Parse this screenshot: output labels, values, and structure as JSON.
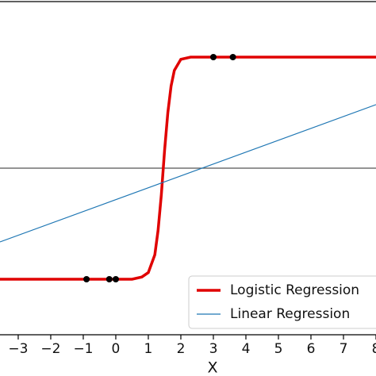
{
  "chart_data": {
    "type": "line",
    "xlabel": "X",
    "xlim": [
      -3.56,
      8.0
    ],
    "ylim": [
      -0.25,
      1.25
    ],
    "xticks": [
      {
        "value": -3,
        "label": "−3"
      },
      {
        "value": -2,
        "label": "−2"
      },
      {
        "value": -1,
        "label": "−1"
      },
      0,
      1,
      2,
      3,
      4,
      5,
      6,
      7,
      8
    ],
    "hline": 0.5,
    "hline_color": "#555555",
    "legend": "lower right",
    "series": [
      {
        "name": "Logistic Regression",
        "type": "line",
        "color": "#e00000",
        "x": [
          -3.56,
          0.5,
          0.8,
          1.0,
          1.2,
          1.3,
          1.4,
          1.46,
          1.5,
          1.6,
          1.7,
          1.8,
          2.0,
          2.3,
          8.0
        ],
        "values": [
          0,
          0,
          0.01,
          0.03,
          0.11,
          0.22,
          0.38,
          0.5,
          0.58,
          0.75,
          0.87,
          0.94,
          0.99,
          1.0,
          1.0
        ]
      },
      {
        "name": "Linear Regression",
        "type": "line",
        "color": "#1f77b4",
        "x": [
          -3.56,
          8.0
        ],
        "values": [
          0.168,
          0.786
        ]
      },
      {
        "type": "scatter",
        "color": "#000000",
        "x": [
          -0.9,
          -0.2,
          0,
          3,
          3.6
        ],
        "values": [
          0,
          0,
          0,
          1,
          1
        ]
      }
    ]
  }
}
